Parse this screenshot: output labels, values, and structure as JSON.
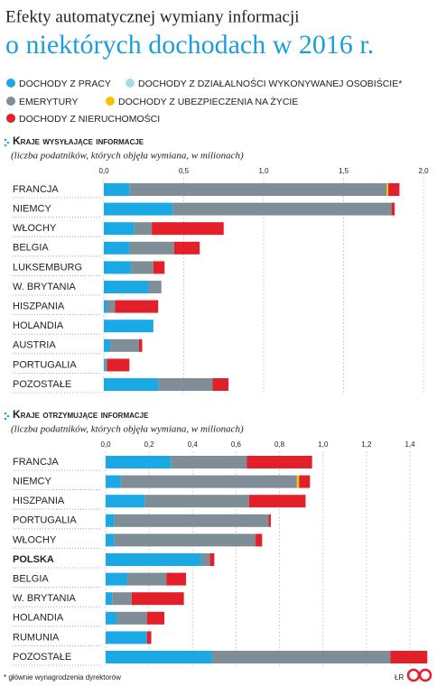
{
  "header": {
    "title": "Efekty automatycznej wymiany informacji",
    "subtitle": "o niektórych dochodach w 2016 r."
  },
  "chart_data": [
    {
      "type": "bar",
      "orientation": "horizontal",
      "title": "Kraje wysyłające informacje",
      "subtitle": "(liczba podatników, których objęła wymiana, w milionach)",
      "categories": [
        "FRANCJA",
        "NIEMCY",
        "WŁOCHY",
        "BELGIA",
        "LUKSEMBURG",
        "W. BRYTANIA",
        "HISZPANIA",
        "HOLANDIA",
        "AUSTRIA",
        "PORTUGALIA",
        "POZOSTAŁE"
      ],
      "series": [
        {
          "name": "DOCHODY Z PRACY",
          "color": "#1ba9e6",
          "values": [
            0.16,
            0.43,
            0.19,
            0.16,
            0.17,
            0.28,
            0.02,
            0.31,
            0.04,
            0.01,
            0.34
          ]
        },
        {
          "name": "DOCHODY Z DZIAŁALNOŚCI WYKONYWANEJ OSOBIŚCIE*",
          "color": "#a8d8f0",
          "values": [
            0,
            0,
            0,
            0,
            0,
            0,
            0,
            0,
            0,
            0,
            0
          ]
        },
        {
          "name": "EMERYTURY",
          "color": "#7f8d96",
          "values": [
            1.61,
            1.37,
            0.11,
            0.28,
            0.14,
            0.08,
            0.05,
            0,
            0.18,
            0.01,
            0.34
          ]
        },
        {
          "name": "DOCHODY Z UBEZPIECZENIA NA ŻYCIE",
          "color": "#f5c400",
          "values": [
            0.01,
            0,
            0,
            0,
            0,
            0,
            0,
            0,
            0,
            0,
            0
          ]
        },
        {
          "name": "DOCHODY Z NIERUCHOMOŚCI",
          "color": "#e3202a",
          "values": [
            0.07,
            0.02,
            0.45,
            0.16,
            0.07,
            0,
            0.27,
            0,
            0.02,
            0.14,
            0.1
          ]
        }
      ],
      "xlim": [
        0,
        2
      ],
      "xticks": [
        {
          "value": 0,
          "label": "0,0"
        },
        {
          "value": 0.5,
          "label": "0,5"
        },
        {
          "value": 1,
          "label": "1,0"
        },
        {
          "value": 1.5,
          "label": "1,5"
        },
        {
          "value": 2,
          "label": "2,0"
        }
      ],
      "grid": true
    },
    {
      "type": "bar",
      "orientation": "horizontal",
      "title": "Kraje otrzymujące informacje",
      "subtitle": "(liczba podatników, których objęła wymiana, w milionach)",
      "categories": [
        "FRANCJA",
        "NIEMCY",
        "HISZPANIA",
        "PORTUGALIA",
        "WŁOCHY",
        "POLSKA",
        "BELGIA",
        "W. BRYTANIA",
        "HOLANDIA",
        "RUMUNIA",
        "POZOSTAŁE"
      ],
      "highlight_index": 5,
      "series": [
        {
          "name": "DOCHODY Z PRACY",
          "color": "#1ba9e6",
          "values": [
            0.3,
            0.07,
            0.18,
            0.04,
            0.04,
            0.44,
            0.1,
            0.03,
            0.05,
            0.19,
            0.49
          ]
        },
        {
          "name": "DOCHODY Z DZIAŁALNOŚCI WYKONYWANEJ OSOBIŚCIE*",
          "color": "#a8d8f0",
          "values": [
            0,
            0,
            0,
            0,
            0,
            0,
            0,
            0,
            0,
            0,
            0
          ]
        },
        {
          "name": "EMERYTURY",
          "color": "#7f8d96",
          "values": [
            0.35,
            0.81,
            0.48,
            0.71,
            0.65,
            0.04,
            0.18,
            0.09,
            0.14,
            0,
            0.82
          ]
        },
        {
          "name": "DOCHODY Z UBEZPIECZENIA NA ŻYCIE",
          "color": "#f5c400",
          "values": [
            0,
            0.01,
            0,
            0,
            0,
            0,
            0,
            0,
            0,
            0,
            0
          ]
        },
        {
          "name": "DOCHODY Z NIERUCHOMOŚCI",
          "color": "#e3202a",
          "values": [
            0.3,
            0.05,
            0.26,
            0.01,
            0.03,
            0.02,
            0.09,
            0.24,
            0.08,
            0.02,
            0.17
          ]
        }
      ],
      "xlim": [
        0,
        1.4
      ],
      "xticks": [
        {
          "value": 0,
          "label": "0,0"
        },
        {
          "value": 0.2,
          "label": "0,2"
        },
        {
          "value": 0.4,
          "label": "0,4"
        },
        {
          "value": 0.6,
          "label": "0,6"
        },
        {
          "value": 0.8,
          "label": "0,8"
        },
        {
          "value": 1,
          "label": "1,0"
        },
        {
          "value": 1.2,
          "label": "1,2"
        },
        {
          "value": 1.4,
          "label": "1,4"
        }
      ],
      "grid": true
    }
  ],
  "footnote": "* głównie wynagrodzenia dyrektorów",
  "credit": "ŁR"
}
